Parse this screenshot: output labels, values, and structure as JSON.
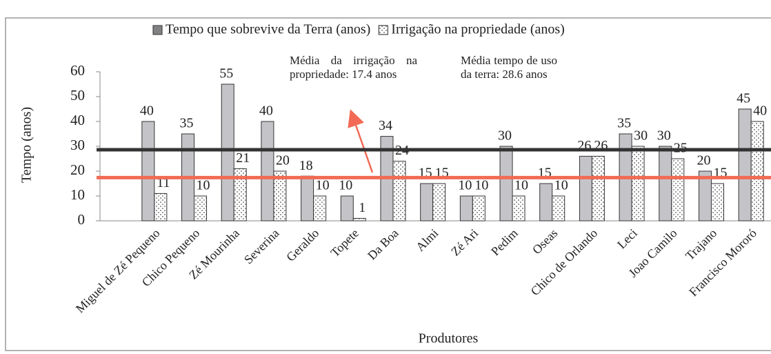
{
  "chart_data": {
    "type": "bar",
    "title": "",
    "legend_position": "top",
    "ylabel": "Tempo (anos)",
    "xlabel": "Produtores",
    "categories": [
      "Miguel de Zé Pequeno",
      "Chico Pequeno",
      "Zé Mourinha",
      "Severina",
      "Geraldo",
      "Topete",
      "Da Boa",
      "Almi",
      "Zé Ari",
      "Pedim",
      "Oseas",
      "Chico de Orlando",
      "Leci",
      "Joao Camilo",
      "Trajano",
      "Francisco Mororó"
    ],
    "series": [
      {
        "name": "Tempo que sobrevive da Terra (anos)",
        "color": "#c4c4c8",
        "values": [
          40,
          35,
          55,
          40,
          18,
          10,
          34,
          15,
          10,
          30,
          15,
          26,
          35,
          30,
          20,
          45
        ]
      },
      {
        "name": "Irrigação na propriedade (anos)",
        "color": "#ffffff",
        "pattern": "dots",
        "values": [
          11,
          10,
          21,
          20,
          10,
          1,
          24,
          15,
          10,
          10,
          10,
          26,
          30,
          25,
          15,
          40
        ]
      }
    ],
    "ylim": [
      0,
      60
    ],
    "yticks": [
      0,
      10,
      20,
      30,
      40,
      50,
      60
    ],
    "reference_lines": [
      {
        "value": 28.6,
        "color": "#333333"
      },
      {
        "value": 17.4,
        "color": "#f26a55"
      }
    ],
    "annotations": [
      "Média da irrigação na propriedade: 17.4 anos",
      "Média tempo de uso da terra: 28.6 anos"
    ]
  }
}
